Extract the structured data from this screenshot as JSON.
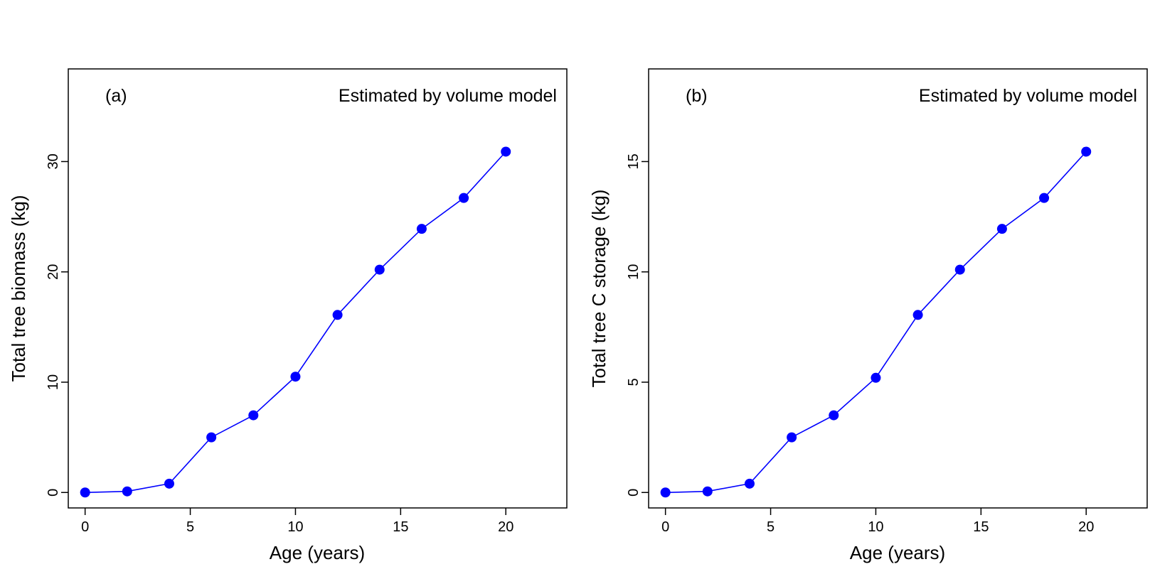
{
  "chart_data": [
    {
      "type": "line",
      "panel_label": "(a)",
      "annotation": "Estimated by volume model",
      "xlabel": "Age (years)",
      "ylabel": "Total tree biomass (kg)",
      "xlim": [
        -0.8,
        22.9
      ],
      "ylim": [
        -1.4,
        38.4
      ],
      "xticks": [
        0,
        5,
        10,
        15,
        20
      ],
      "yticks": [
        0,
        10,
        20,
        30
      ],
      "grid": false,
      "series_color": "#0000ff",
      "x": [
        0,
        2,
        4,
        6,
        8,
        10,
        12,
        14,
        16,
        18,
        20
      ],
      "y": [
        0,
        0.1,
        0.8,
        5.0,
        7.0,
        10.5,
        16.1,
        20.2,
        23.9,
        26.7,
        30.9
      ]
    },
    {
      "type": "line",
      "panel_label": "(b)",
      "annotation": "Estimated by volume model",
      "xlabel": "Age (years)",
      "ylabel": "Total tree C storage (kg)",
      "xlim": [
        -0.8,
        22.9
      ],
      "ylim": [
        -0.7,
        19.2
      ],
      "xticks": [
        0,
        5,
        10,
        15,
        20
      ],
      "yticks": [
        0,
        5,
        10,
        15
      ],
      "grid": false,
      "series_color": "#0000ff",
      "x": [
        0,
        2,
        4,
        6,
        8,
        10,
        12,
        14,
        16,
        18,
        20
      ],
      "y": [
        0,
        0.05,
        0.4,
        2.5,
        3.5,
        5.2,
        8.05,
        10.1,
        11.95,
        13.35,
        15.45
      ]
    }
  ]
}
